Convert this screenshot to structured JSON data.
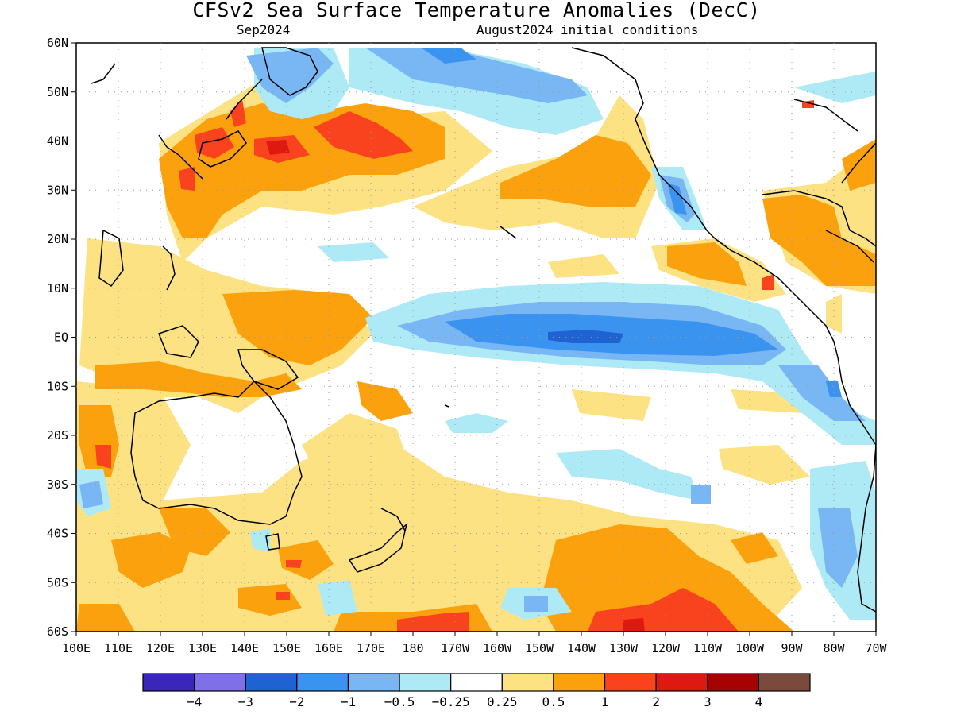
{
  "title": "CFSv2 Sea Surface Temperature Anomalies (DecC)",
  "subtitle_left": "Sep2024",
  "subtitle_right": "August2024 initial conditions",
  "lat_labels": [
    "60N",
    "50N",
    "40N",
    "30N",
    "20N",
    "10N",
    "EQ",
    "10S",
    "20S",
    "30S",
    "40S",
    "50S",
    "60S"
  ],
  "lon_labels": [
    "100E",
    "110E",
    "120E",
    "130E",
    "140E",
    "150E",
    "160E",
    "170E",
    "180",
    "170W",
    "160W",
    "150W",
    "140W",
    "130W",
    "120W",
    "110W",
    "100W",
    "90W",
    "80W",
    "70W"
  ],
  "legend": {
    "colors": [
      "#3a26b8",
      "#8070e8",
      "#1f62d2",
      "#3b93f0",
      "#78b6f4",
      "#aeeaf6",
      "#ffffff",
      "#fde283",
      "#fba10d",
      "#f9431f",
      "#dd1910",
      "#a50303",
      "#7b4a3d"
    ],
    "labels": [
      "−4",
      "−3",
      "−2",
      "−1",
      "−0.5",
      "−0.25",
      "0.25",
      "0.5",
      "1",
      "2",
      "3",
      "4"
    ]
  },
  "colors": {
    "warm_light": "#fde283",
    "warm": "#fba10d",
    "hot": "#f9431f",
    "hotter": "#dd1910",
    "cool_light": "#aeeaf6",
    "cool": "#78b6f4",
    "cold": "#3b93f0",
    "colder": "#1f62d2"
  }
}
